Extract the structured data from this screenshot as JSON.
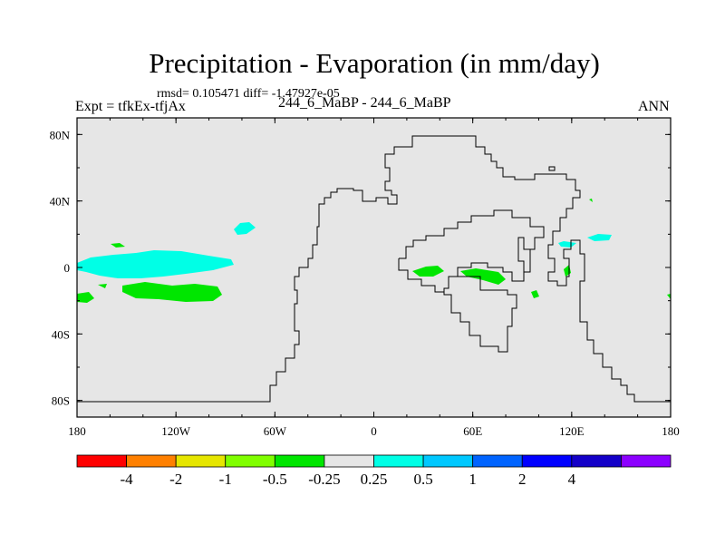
{
  "header": {
    "title": "Precipitation - Evaporation (in mm/day)",
    "stats": "rmsd= 0.105471 diff= -1.47927e-05",
    "experiment": "Expt = tfkEx-tfjAx",
    "center": "244_6_MaBP - 244_6_MaBP",
    "season": "ANN"
  },
  "map": {
    "background": "#e6e6e6",
    "coastline_color": "#000000",
    "lon_ticks": [
      "180",
      "120W",
      "60W",
      "0",
      "60E",
      "120E",
      "180"
    ],
    "lat_ticks": [
      "80N",
      "40N",
      "0",
      "40S",
      "80S"
    ]
  },
  "colorbar": {
    "colors": [
      "#ff0000",
      "#ff8000",
      "#e6e600",
      "#80ff00",
      "#00e600",
      "#e6e6e6",
      "#00ffe6",
      "#00c8ff",
      "#0064ff",
      "#0000ff",
      "#1400c8",
      "#8c00ff"
    ],
    "labels": [
      "-4",
      "-2",
      "-1",
      "-0.5",
      "-0.25",
      "0.25",
      "0.5",
      "1",
      "2",
      "4"
    ]
  }
}
